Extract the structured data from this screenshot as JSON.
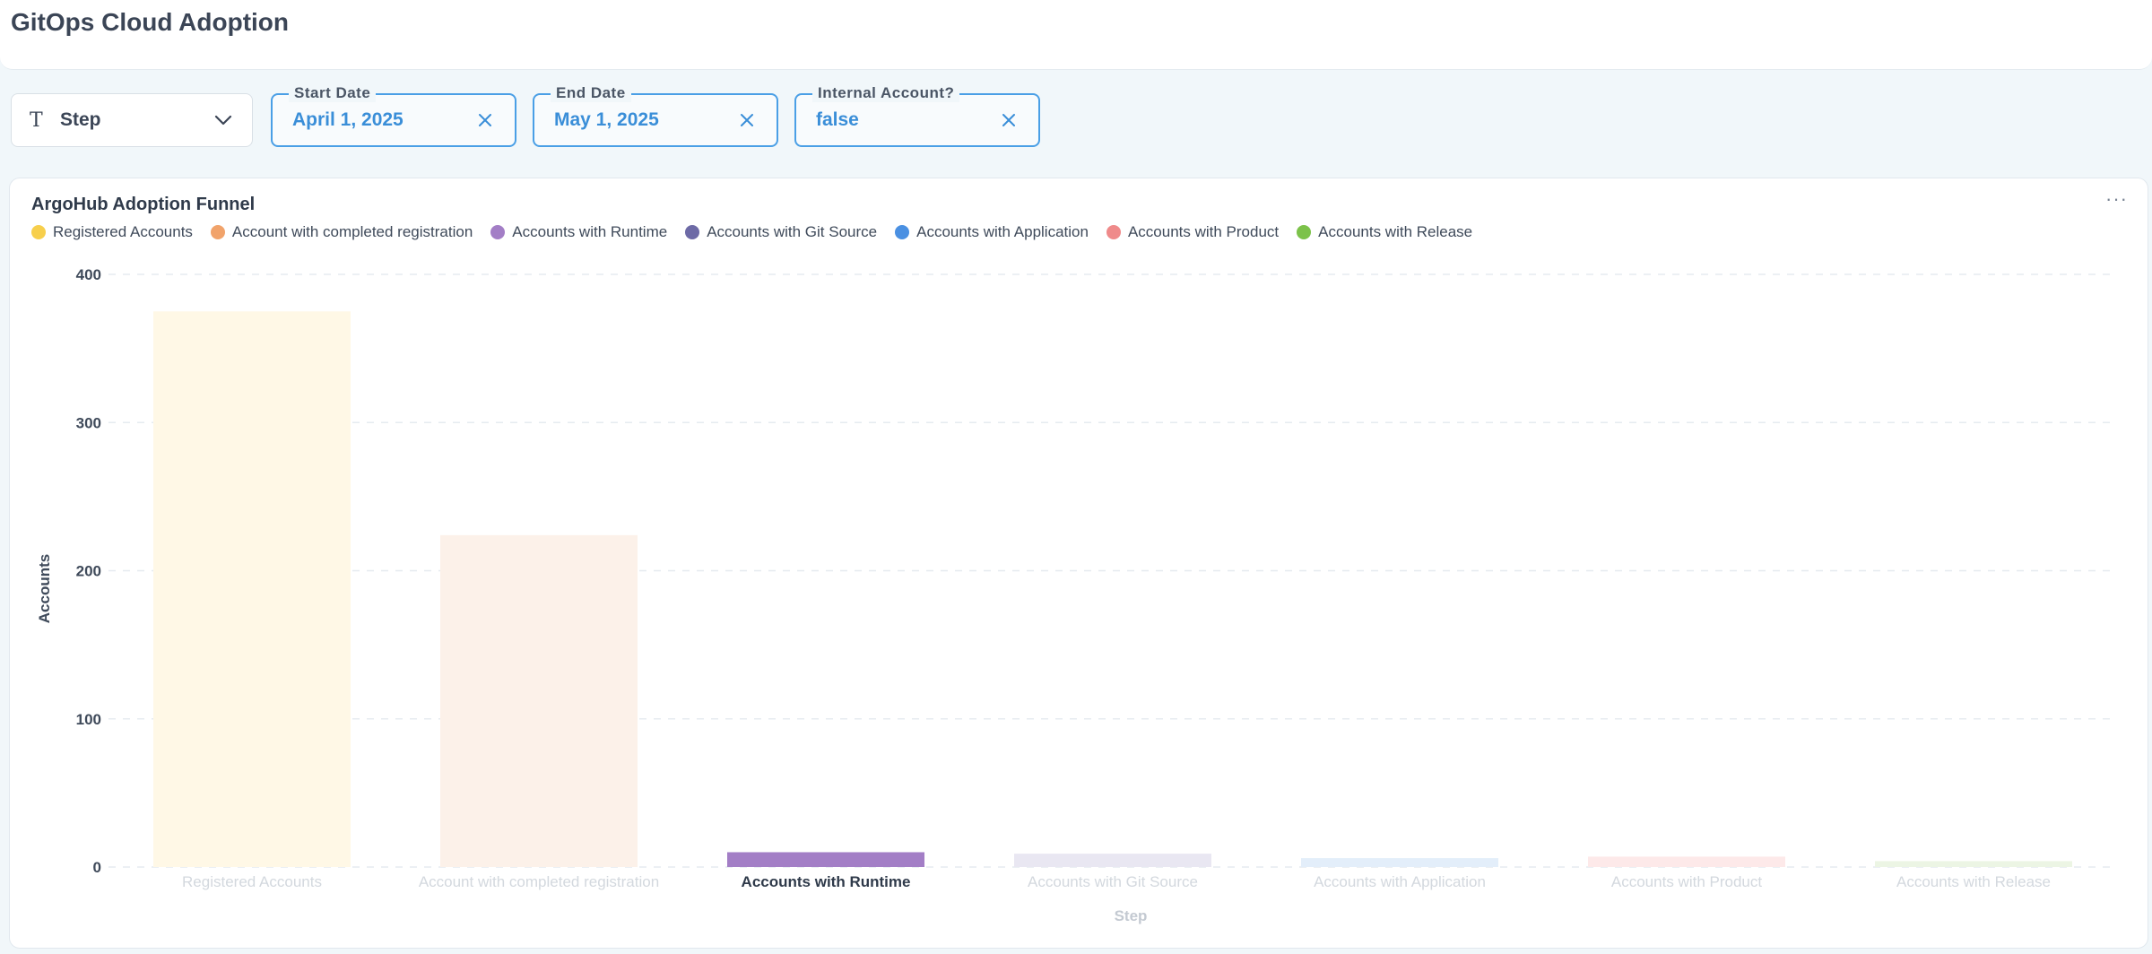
{
  "header": {
    "title": "GitOps Cloud Adoption"
  },
  "filters": {
    "group_by": {
      "label": "Step",
      "icon": "text-type-icon"
    },
    "chips": [
      {
        "label": "Start Date",
        "value": "April 1, 2025"
      },
      {
        "label": "End Date",
        "value": "May 1, 2025"
      },
      {
        "label": "Internal Account?",
        "value": "false"
      }
    ]
  },
  "card": {
    "title": "ArgoHub Adoption Funnel",
    "menu": "···"
  },
  "colors": {
    "accent": "#4a9fe6",
    "active_bar": "#a37ec6"
  },
  "chart_data": {
    "type": "bar",
    "title": "ArgoHub Adoption Funnel",
    "xlabel": "Step",
    "ylabel": "Accounts",
    "ylim": [
      0,
      400
    ],
    "yticks": [
      0,
      100,
      200,
      300,
      400
    ],
    "grid": true,
    "legend_position": "top-left",
    "highlighted_category": "Accounts with Runtime",
    "categories": [
      "Registered Accounts",
      "Account with completed registration",
      "Accounts with Runtime",
      "Accounts with Git Source",
      "Accounts with Application",
      "Accounts with Product",
      "Accounts with Release"
    ],
    "values": [
      375,
      224,
      10,
      9,
      6,
      7,
      4
    ],
    "series_colors": [
      "#f7cf4c",
      "#f1a36b",
      "#a37ec6",
      "#6d6aa6",
      "#4a90e2",
      "#ef8a8a",
      "#7cc24a"
    ],
    "dim_colors": [
      "#fff8e6",
      "#fcf1e9",
      "#a37ec6",
      "#e9e7f2",
      "#e3eefa",
      "#fde9e9",
      "#ecf5e4"
    ]
  }
}
